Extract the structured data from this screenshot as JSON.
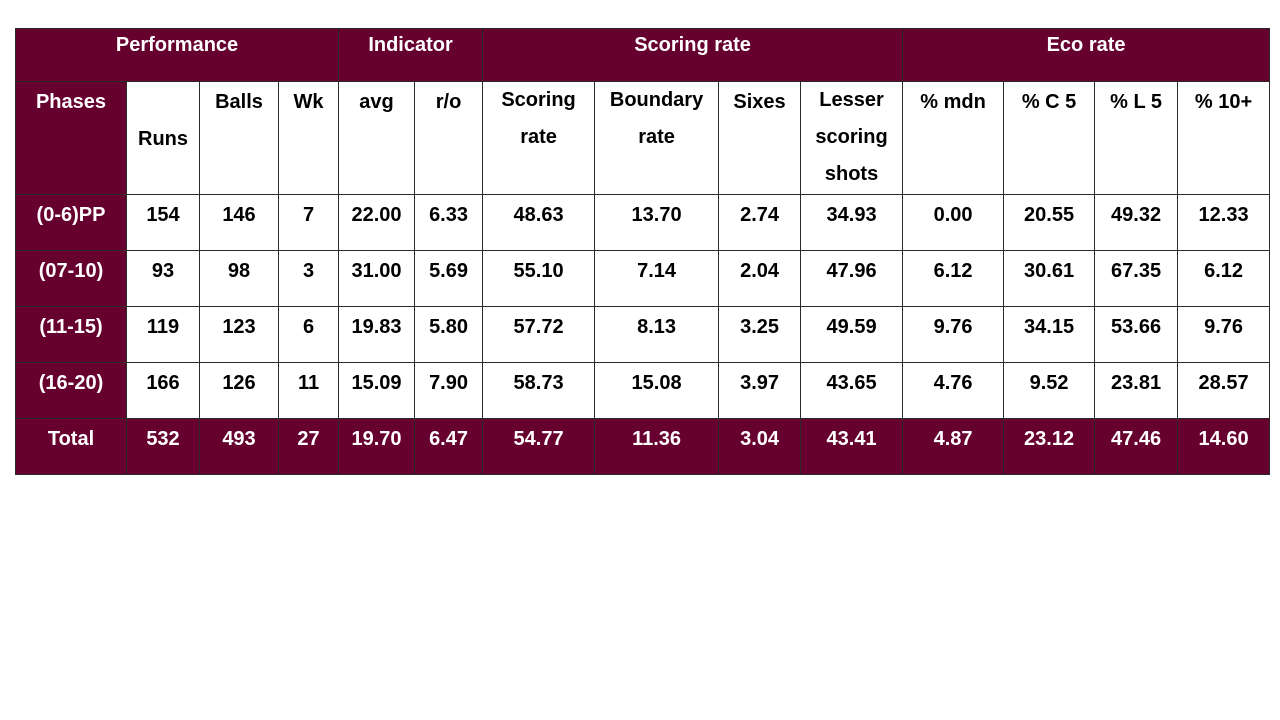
{
  "colors": {
    "header_bg": "#66002f",
    "header_text": "#ffffff",
    "body_bg": "#ffffff",
    "body_text": "#000000"
  },
  "group_headers": {
    "performance": "Performance",
    "indicator": "Indicator",
    "scoring_rate": "Scoring rate",
    "eco_rate": "Eco rate"
  },
  "columns": {
    "phases": "Phases",
    "runs": "Runs",
    "balls": "Balls",
    "wk": "Wk",
    "avg": "avg",
    "ro": "r/o",
    "scoring_rate": "Scoring rate",
    "boundary_rate": "Boundary rate",
    "sixes": "Sixes",
    "lesser_scoring_shots": "Lesser scoring shots",
    "pct_mdn": "% mdn",
    "pct_c5": "% C 5",
    "pct_l5": "% L 5",
    "pct_10plus": "% 10+"
  },
  "rows": [
    {
      "phase": "(0-6)PP",
      "runs": "154",
      "balls": "146",
      "wk": "7",
      "avg": "22.00",
      "ro": "6.33",
      "scoring_rate": "48.63",
      "boundary_rate": "13.70",
      "sixes": "2.74",
      "lesser": "34.93",
      "mdn": "0.00",
      "c5": "20.55",
      "l5": "49.32",
      "p10": "12.33"
    },
    {
      "phase": "(07-10)",
      "runs": "93",
      "balls": "98",
      "wk": "3",
      "avg": "31.00",
      "ro": "5.69",
      "scoring_rate": "55.10",
      "boundary_rate": "7.14",
      "sixes": "2.04",
      "lesser": "47.96",
      "mdn": "6.12",
      "c5": "30.61",
      "l5": "67.35",
      "p10": "6.12"
    },
    {
      "phase": "(11-15)",
      "runs": "119",
      "balls": "123",
      "wk": "6",
      "avg": "19.83",
      "ro": "5.80",
      "scoring_rate": "57.72",
      "boundary_rate": "8.13",
      "sixes": "3.25",
      "lesser": "49.59",
      "mdn": "9.76",
      "c5": "34.15",
      "l5": "53.66",
      "p10": "9.76"
    },
    {
      "phase": "(16-20)",
      "runs": "166",
      "balls": "126",
      "wk": "11",
      "avg": "15.09",
      "ro": "7.90",
      "scoring_rate": "58.73",
      "boundary_rate": "15.08",
      "sixes": "3.97",
      "lesser": "43.65",
      "mdn": "4.76",
      "c5": "9.52",
      "l5": "23.81",
      "p10": "28.57"
    }
  ],
  "total": {
    "phase": "Total",
    "runs": "532",
    "balls": "493",
    "wk": "27",
    "avg": "19.70",
    "ro": "6.47",
    "scoring_rate": "54.77",
    "boundary_rate": "11.36",
    "sixes": "3.04",
    "lesser": "43.41",
    "mdn": "4.87",
    "c5": "23.12",
    "l5": "47.46",
    "p10": "14.60"
  }
}
